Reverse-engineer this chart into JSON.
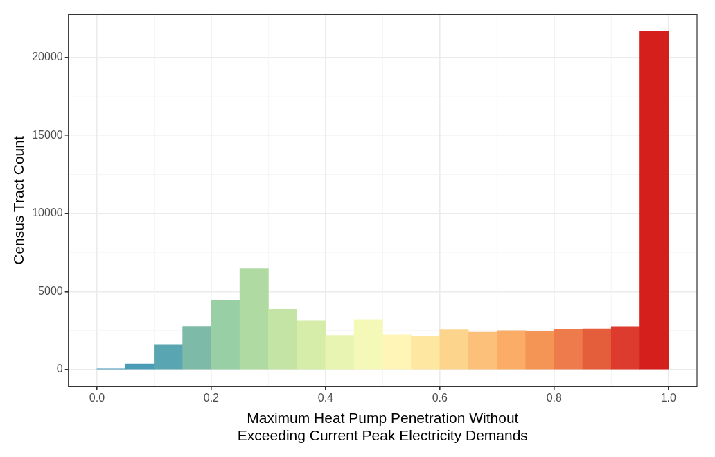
{
  "chart_data": {
    "type": "histogram",
    "xlabel": "Maximum Heat Pump Penetration Without\nExceeding Current Peak Electricity Demands",
    "ylabel": "Census Tract Count",
    "bins": [
      0,
      0.05,
      0.1,
      0.15,
      0.2,
      0.25,
      0.3,
      0.35,
      0.4,
      0.45,
      0.5,
      0.55,
      0.6,
      0.65,
      0.7,
      0.75,
      0.8,
      0.85,
      0.9,
      0.95,
      1.0
    ],
    "values": [
      50,
      350,
      1610,
      2770,
      4440,
      6460,
      3870,
      3120,
      2200,
      3200,
      2230,
      2160,
      2550,
      2400,
      2500,
      2430,
      2580,
      2620,
      2760,
      21670
    ],
    "colors": [
      "#3f8fb4",
      "#4a9bb6",
      "#5aa5b2",
      "#7dbaa8",
      "#98cfa4",
      "#afdba2",
      "#c4e4a6",
      "#d6eca9",
      "#e8f4b2",
      "#f5f9b8",
      "#fef5b6",
      "#fee7a0",
      "#fdd48c",
      "#fcc07a",
      "#fbad67",
      "#f49556",
      "#ed7b4b",
      "#e55e3c",
      "#dd3b2d",
      "#d41f1c"
    ],
    "xlim": [
      -0.05,
      1.05
    ],
    "xticks": [
      {
        "value": 0,
        "label": "0.0"
      },
      0.2,
      0.4,
      0.6,
      0.8,
      {
        "value": 1,
        "label": "1.0"
      }
    ],
    "ylim": [
      -1083,
      22753
    ],
    "yticks": [
      0,
      5000,
      10000,
      15000,
      20000
    ],
    "grid": true
  }
}
